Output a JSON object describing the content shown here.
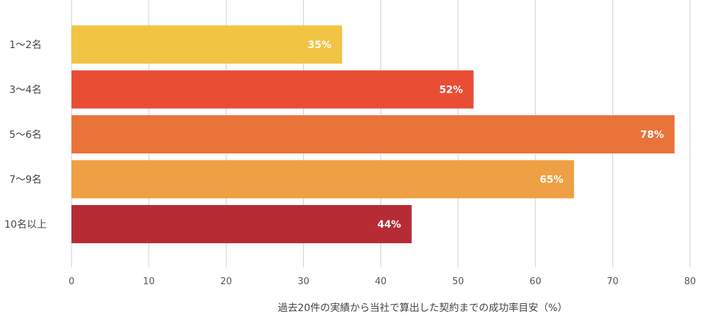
{
  "chart_data": {
    "type": "bar",
    "orientation": "horizontal",
    "categories": [
      "1〜2名",
      "3〜4名",
      "5〜6名",
      "7〜9名",
      "10名以上"
    ],
    "values": [
      35,
      52,
      78,
      65,
      44
    ],
    "value_labels": [
      "35%",
      "52%",
      "78%",
      "65%",
      "44%"
    ],
    "colors": [
      "#F2C443",
      "#E94E34",
      "#EA733A",
      "#EFA045",
      "#B72C34"
    ],
    "xlabel": "過去20件の実績から当社で算出した契約までの成功率目安（%）",
    "ylabel": "",
    "title": "",
    "xlim": [
      0,
      85
    ],
    "xticks": [
      0,
      10,
      20,
      30,
      40,
      50,
      60,
      70,
      80
    ],
    "grid": "vertical"
  }
}
